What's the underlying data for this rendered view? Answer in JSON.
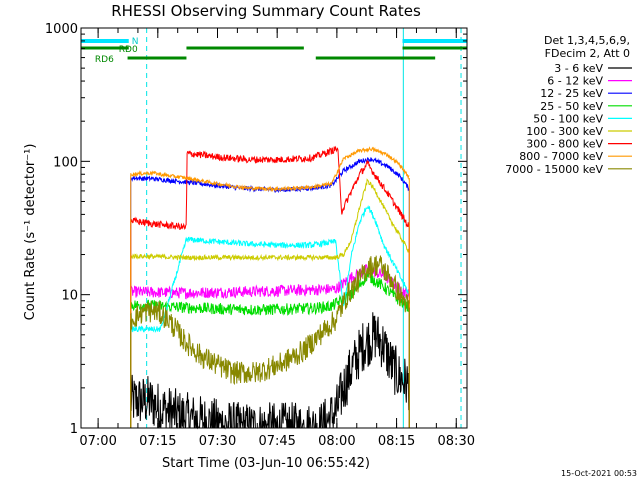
{
  "chart_data": {
    "type": "line",
    "title": "RHESSI Observing Summary Count Rates",
    "xlabel": "Start Time (03-Jun-10 06:55:42)",
    "ylabel": "Count Rate (s⁻¹ detector⁻¹)",
    "yscale": "log",
    "ylim": [
      1,
      1000
    ],
    "xlim_min": [
      0,
      97
    ],
    "x_ticks": [
      {
        "label": "07:00",
        "min": 4.3
      },
      {
        "label": "07:15",
        "min": 19.3
      },
      {
        "label": "07:30",
        "min": 34.3
      },
      {
        "label": "07:45",
        "min": 49.3
      },
      {
        "label": "08:00",
        "min": 64.3
      },
      {
        "label": "08:15",
        "min": 79.3
      },
      {
        "label": "08:30",
        "min": 94.3
      }
    ],
    "y_ticks": [
      {
        "label": "1",
        "value": 1
      },
      {
        "label": "10",
        "value": 10
      },
      {
        "label": "100",
        "value": 100
      },
      {
        "label": "1000",
        "value": 1000
      }
    ],
    "detector_info": [
      "Det 1,3,4,5,6,9,",
      "FDecim 2, Att 0"
    ],
    "annotations": {
      "n_label": "N",
      "rd0_label": "RD0",
      "rd6_label": "RD6",
      "n_bars": [
        [
          0,
          12
        ],
        [
          80.8,
          97
        ]
      ],
      "rd0_bars": [
        [
          0,
          12
        ],
        [
          26.5,
          56
        ],
        [
          80.8,
          97
        ]
      ],
      "rd6_bars": [
        [
          11.7,
          26.5
        ],
        [
          59,
          89
        ]
      ],
      "solid_lines": [
        0,
        81
      ],
      "dashed_lines": [
        16.5,
        95.5
      ]
    },
    "gaps": [
      [
        0,
        12.5
      ],
      [
        82.5,
        97
      ]
    ],
    "series": [
      {
        "name": "3 - 6 keV",
        "color": "#000000",
        "points": [
          [
            12.5,
            1.6
          ],
          [
            17,
            1.6
          ],
          [
            20,
            1.4
          ],
          [
            26,
            1.2
          ],
          [
            32,
            1.1
          ],
          [
            40,
            1.0
          ],
          [
            60,
            1.0
          ],
          [
            64,
            1.3
          ],
          [
            66,
            2.0
          ],
          [
            68,
            2.8
          ],
          [
            71,
            4.2
          ],
          [
            74,
            5.0
          ],
          [
            76,
            4.2
          ],
          [
            78,
            3.0
          ],
          [
            80,
            2.4
          ],
          [
            82.5,
            2.1
          ]
        ]
      },
      {
        "name": "6 - 12 keV",
        "color": "#ff00ff",
        "points": [
          [
            12.5,
            10.5
          ],
          [
            26,
            10.3
          ],
          [
            40,
            10.5
          ],
          [
            55,
            10.8
          ],
          [
            64,
            11.0
          ],
          [
            68,
            13.5
          ],
          [
            72,
            15.5
          ],
          [
            76,
            14.0
          ],
          [
            80,
            11.0
          ],
          [
            82.5,
            10.0
          ]
        ]
      },
      {
        "name": "12 - 25 keV",
        "color": "#0000ff",
        "points": [
          [
            12.5,
            75
          ],
          [
            18,
            74
          ],
          [
            22,
            72
          ],
          [
            26.5,
            70
          ],
          [
            34,
            66
          ],
          [
            40,
            63
          ],
          [
            50,
            61
          ],
          [
            58,
            63
          ],
          [
            63,
            66
          ],
          [
            66,
            85
          ],
          [
            70,
            100
          ],
          [
            73,
            104
          ],
          [
            77,
            92
          ],
          [
            80,
            78
          ],
          [
            82.5,
            62
          ]
        ]
      },
      {
        "name": "25 - 50 keV",
        "color": "#00dd00",
        "points": [
          [
            12.5,
            8.4
          ],
          [
            20,
            8.2
          ],
          [
            26.5,
            8.0
          ],
          [
            36,
            7.8
          ],
          [
            46,
            7.7
          ],
          [
            58,
            7.9
          ],
          [
            63,
            8.2
          ],
          [
            68,
            10.0
          ],
          [
            72,
            14.0
          ],
          [
            76,
            11.5
          ],
          [
            80,
            9.0
          ],
          [
            82.5,
            8.0
          ]
        ]
      },
      {
        "name": "50 - 100 keV",
        "color": "#00ffff",
        "points": [
          [
            12.5,
            5.5
          ],
          [
            20,
            5.5
          ],
          [
            26.5,
            26.0
          ],
          [
            34,
            25
          ],
          [
            42,
            24
          ],
          [
            50,
            23.5
          ],
          [
            58,
            23.5
          ],
          [
            64,
            25
          ],
          [
            66,
            8.0
          ],
          [
            68,
            20.0
          ],
          [
            70,
            35.0
          ],
          [
            72,
            47.0
          ],
          [
            74,
            36.0
          ],
          [
            76,
            24.0
          ],
          [
            80,
            14.0
          ],
          [
            82.5,
            10.0
          ]
        ]
      },
      {
        "name": "100 - 300 keV",
        "color": "#cccc00",
        "points": [
          [
            12.5,
            19.5
          ],
          [
            26,
            19.0
          ],
          [
            40,
            19.0
          ],
          [
            64,
            19.0
          ],
          [
            66,
            20.0
          ],
          [
            68,
            26.0
          ],
          [
            70,
            45.0
          ],
          [
            72,
            72.0
          ],
          [
            74,
            60.0
          ],
          [
            77,
            40.0
          ],
          [
            80,
            28.0
          ],
          [
            82.5,
            21.0
          ]
        ]
      },
      {
        "name": "300 - 800 keV",
        "color": "#ff0000",
        "points": [
          [
            12.5,
            36
          ],
          [
            18,
            34
          ],
          [
            26.5,
            32
          ],
          [
            26.6,
            115
          ],
          [
            34,
            108
          ],
          [
            42,
            103
          ],
          [
            50,
            103
          ],
          [
            58,
            106
          ],
          [
            63,
            120
          ],
          [
            64.5,
            125
          ],
          [
            65.5,
            42
          ],
          [
            68,
            60
          ],
          [
            70,
            80
          ],
          [
            72,
            96
          ],
          [
            74,
            78
          ],
          [
            77,
            58
          ],
          [
            80,
            42
          ],
          [
            82.5,
            32
          ]
        ]
      },
      {
        "name": "800 - 7000 keV",
        "color": "#ff9900",
        "points": [
          [
            12.5,
            80
          ],
          [
            18,
            82
          ],
          [
            22,
            78
          ],
          [
            26.5,
            75
          ],
          [
            34,
            68
          ],
          [
            42,
            63
          ],
          [
            50,
            62
          ],
          [
            58,
            64
          ],
          [
            63,
            68
          ],
          [
            66,
            105
          ],
          [
            70,
            120
          ],
          [
            73,
            124
          ],
          [
            77,
            112
          ],
          [
            80,
            95
          ],
          [
            82.5,
            75
          ]
        ]
      },
      {
        "name": "7000 - 15000 keV",
        "color": "#888800",
        "points": [
          [
            12.5,
            6.5
          ],
          [
            16,
            7.5
          ],
          [
            19,
            7.5
          ],
          [
            22,
            6.5
          ],
          [
            26,
            4.5
          ],
          [
            30,
            3.5
          ],
          [
            34,
            3.0
          ],
          [
            38,
            2.6
          ],
          [
            44,
            2.6
          ],
          [
            50,
            3.0
          ],
          [
            56,
            3.8
          ],
          [
            60,
            5.0
          ],
          [
            64,
            6.5
          ],
          [
            67,
            10.0
          ],
          [
            70,
            13.0
          ],
          [
            72,
            16.0
          ],
          [
            75,
            17.0
          ],
          [
            78,
            13.0
          ],
          [
            80,
            10.0
          ],
          [
            82.5,
            8.0
          ]
        ]
      }
    ],
    "footer_date": "15-Oct-2021 00:53"
  }
}
